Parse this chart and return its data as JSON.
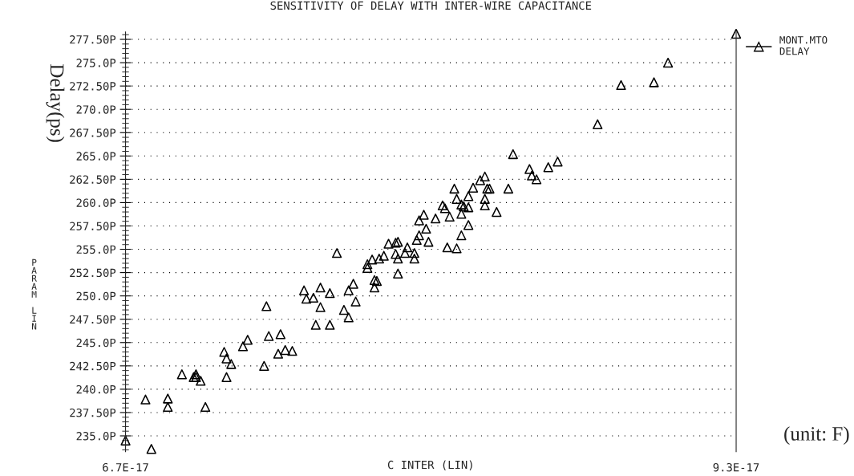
{
  "chart_data": {
    "type": "scatter",
    "title": "SENSITIVITY OF DELAY WITH INTER-WIRE CAPACITANCE",
    "xlabel": "C INTER (LIN)",
    "ylabel": "Delay(ps)",
    "annotations": [
      "PARAM LIN",
      "(unit: F)"
    ],
    "xlim": [
      6.7e-17,
      9.3e-17
    ],
    "xticks": [
      {
        "value": 6.7e-17,
        "label": "6.7E-17"
      },
      {
        "value": 9.3e-17,
        "label": "9.3E-17"
      }
    ],
    "ylim": [
      233.3,
      278.3
    ],
    "yticks": [
      {
        "value": 235,
        "label": "235.0P"
      },
      {
        "value": 237.5,
        "label": "237.50P"
      },
      {
        "value": 240,
        "label": "240.0P"
      },
      {
        "value": 242.5,
        "label": "242.50P"
      },
      {
        "value": 245,
        "label": "245.0P"
      },
      {
        "value": 247.5,
        "label": "247.50P"
      },
      {
        "value": 250,
        "label": "250.0P"
      },
      {
        "value": 252.5,
        "label": "252.50P"
      },
      {
        "value": 255,
        "label": "255.0P"
      },
      {
        "value": 257.5,
        "label": "257.50P"
      },
      {
        "value": 260,
        "label": "260.0P"
      },
      {
        "value": 262.5,
        "label": "262.50P"
      },
      {
        "value": 265,
        "label": "265.0P"
      },
      {
        "value": 267.5,
        "label": "267.50P"
      },
      {
        "value": 270,
        "label": "270.0P"
      },
      {
        "value": 272.5,
        "label": "272.50P"
      },
      {
        "value": 275,
        "label": "275.0P"
      },
      {
        "value": 277.5,
        "label": "277.50P"
      },
      {
        "value": 233.5,
        "label": null
      },
      {
        "value": 234,
        "label": null
      },
      {
        "value": 234.5,
        "label": null
      },
      {
        "value": 235.5,
        "label": null
      },
      {
        "value": 236,
        "label": null
      },
      {
        "value": 236.5,
        "label": null
      },
      {
        "value": 237,
        "label": null
      },
      {
        "value": 238,
        "label": null
      },
      {
        "value": 238.5,
        "label": null
      },
      {
        "value": 239,
        "label": null
      },
      {
        "value": 239.5,
        "label": null
      },
      {
        "value": 240.5,
        "label": null
      },
      {
        "value": 241,
        "label": null
      },
      {
        "value": 241.5,
        "label": null
      },
      {
        "value": 242,
        "label": null
      },
      {
        "value": 243,
        "label": null
      },
      {
        "value": 243.5,
        "label": null
      },
      {
        "value": 244,
        "label": null
      },
      {
        "value": 244.5,
        "label": null
      },
      {
        "value": 245.5,
        "label": null
      },
      {
        "value": 246,
        "label": null
      },
      {
        "value": 246.5,
        "label": null
      },
      {
        "value": 247,
        "label": null
      },
      {
        "value": 248,
        "label": null
      },
      {
        "value": 248.5,
        "label": null
      },
      {
        "value": 249,
        "label": null
      },
      {
        "value": 249.5,
        "label": null
      },
      {
        "value": 250.5,
        "label": null
      },
      {
        "value": 251,
        "label": null
      },
      {
        "value": 251.5,
        "label": null
      },
      {
        "value": 252,
        "label": null
      },
      {
        "value": 253,
        "label": null
      },
      {
        "value": 253.5,
        "label": null
      },
      {
        "value": 254,
        "label": null
      },
      {
        "value": 254.5,
        "label": null
      },
      {
        "value": 255.5,
        "label": null
      },
      {
        "value": 256,
        "label": null
      },
      {
        "value": 256.5,
        "label": null
      },
      {
        "value": 257,
        "label": null
      },
      {
        "value": 258,
        "label": null
      },
      {
        "value": 258.5,
        "label": null
      },
      {
        "value": 259,
        "label": null
      },
      {
        "value": 259.5,
        "label": null
      },
      {
        "value": 260.5,
        "label": null
      },
      {
        "value": 261,
        "label": null
      },
      {
        "value": 261.5,
        "label": null
      },
      {
        "value": 262,
        "label": null
      },
      {
        "value": 263,
        "label": null
      },
      {
        "value": 263.5,
        "label": null
      },
      {
        "value": 264,
        "label": null
      },
      {
        "value": 264.5,
        "label": null
      },
      {
        "value": 265.5,
        "label": null
      },
      {
        "value": 266,
        "label": null
      },
      {
        "value": 266.5,
        "label": null
      },
      {
        "value": 267,
        "label": null
      },
      {
        "value": 268,
        "label": null
      },
      {
        "value": 268.5,
        "label": null
      },
      {
        "value": 269,
        "label": null
      },
      {
        "value": 269.5,
        "label": null
      },
      {
        "value": 270.5,
        "label": null
      },
      {
        "value": 271,
        "label": null
      },
      {
        "value": 271.5,
        "label": null
      },
      {
        "value": 272,
        "label": null
      },
      {
        "value": 273,
        "label": null
      },
      {
        "value": 273.5,
        "label": null
      },
      {
        "value": 274,
        "label": null
      },
      {
        "value": 274.5,
        "label": null
      },
      {
        "value": 275.5,
        "label": null
      },
      {
        "value": 276,
        "label": null
      },
      {
        "value": 276.5,
        "label": null
      },
      {
        "value": 277,
        "label": null
      },
      {
        "value": 278,
        "label": null
      }
    ],
    "grid": "y",
    "legend": "top right",
    "marker": "triangle",
    "series": [
      {
        "name": "MONT.MTO\nDELAY",
        "color": "#000000",
        "x": [
          6.7e-17,
          6.81e-17,
          6.785e-17,
          6.88e-17,
          6.88e-17,
          7.04e-17,
          6.94e-17,
          7e-17,
          6.99e-17,
          7e-17,
          7.02e-17,
          7.12e-17,
          7.13e-17,
          7.15e-17,
          7.13e-17,
          7.2e-17,
          7.22e-17,
          7.3e-17,
          7.31e-17,
          7.36e-17,
          7.29e-17,
          7.35e-17,
          7.38e-17,
          7.41e-17,
          7.46e-17,
          7.47e-17,
          7.5e-17,
          7.53e-17,
          7.57e-17,
          7.53e-17,
          7.51e-17,
          7.57e-17,
          7.6e-17,
          7.65e-17,
          7.67e-17,
          7.63e-17,
          7.65e-17,
          7.68e-17,
          7.73e-17,
          7.73e-17,
          7.75e-17,
          7.78e-17,
          7.8e-17,
          7.76e-17,
          7.77e-17,
          7.76e-17,
          7.82e-17,
          7.86e-17,
          7.85e-17,
          7.9e-17,
          7.85e-17,
          7.86e-17,
          7.89e-17,
          7.93e-17,
          7.93e-17,
          7.86e-17,
          7.94e-17,
          7.95e-17,
          7.98e-17,
          7.99e-17,
          9.3e-17,
          9.01e-17,
          8.81e-17,
          8.95e-17,
          8.71e-17,
          8.35e-17,
          8.42e-17,
          8.5e-17,
          8.54e-17,
          8.43e-17,
          8.45e-17,
          8.23e-17,
          8.21e-17,
          8.18e-17,
          8.1e-17,
          8.24e-17,
          8.25e-17,
          8.33e-17,
          8.11e-17,
          8.16e-17,
          8.23e-17,
          8.23e-17,
          8.05e-17,
          8.06e-17,
          8.13e-17,
          8.14e-17,
          8.16e-17,
          8.28e-17,
          7.97e-17,
          8.02e-17,
          8.08e-17,
          8.13e-17,
          7.95e-17,
          8.16e-17,
          8.13e-17,
          8.07e-17,
          8.11e-17
        ],
        "values": [
          234.5,
          233.6,
          238.9,
          239.0,
          238.1,
          238.1,
          241.6,
          241.6,
          241.3,
          241.3,
          240.9,
          244.0,
          243.3,
          242.7,
          241.3,
          244.6,
          245.3,
          248.9,
          245.7,
          245.9,
          242.5,
          243.8,
          244.2,
          244.1,
          250.6,
          249.7,
          249.8,
          250.9,
          250.3,
          248.8,
          246.9,
          246.9,
          254.6,
          250.6,
          251.3,
          248.5,
          247.7,
          249.4,
          253.4,
          253.0,
          253.9,
          254.0,
          254.3,
          251.7,
          251.6,
          250.9,
          255.6,
          255.8,
          255.7,
          255.2,
          254.5,
          254.0,
          254.6,
          254.6,
          254.0,
          252.4,
          256.0,
          256.5,
          257.2,
          255.8,
          278.1,
          275.0,
          272.6,
          272.9,
          268.4,
          265.2,
          263.6,
          263.8,
          264.4,
          262.9,
          262.5,
          262.8,
          262.4,
          261.6,
          261.5,
          261.5,
          261.5,
          261.5,
          260.4,
          260.7,
          260.4,
          259.7,
          259.7,
          259.4,
          259.8,
          259.6,
          259.5,
          259.0,
          258.7,
          258.3,
          258.5,
          258.8,
          258.1,
          257.6,
          256.5,
          255.2,
          255.1
        ]
      }
    ]
  }
}
